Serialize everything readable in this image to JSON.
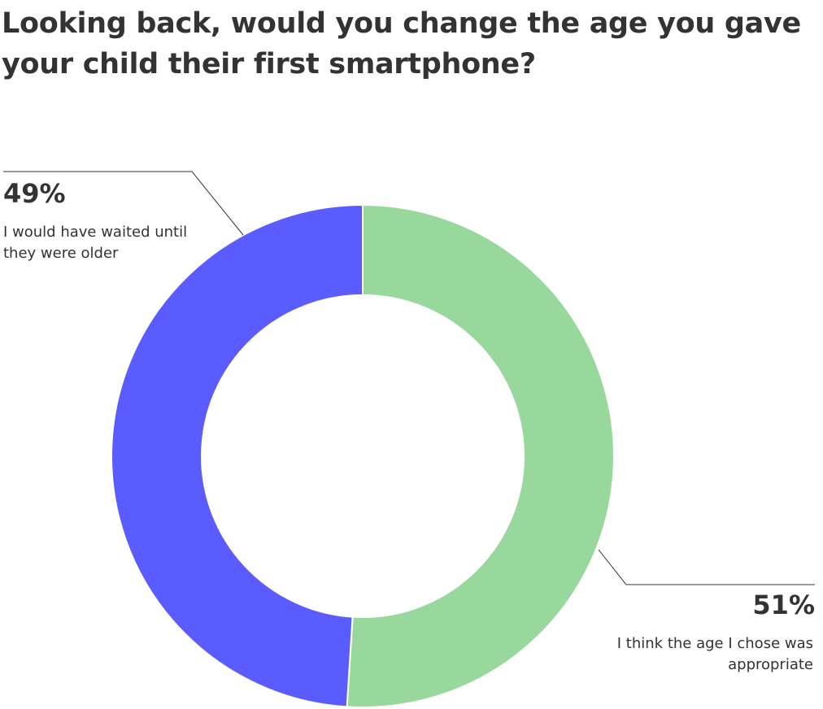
{
  "chart_data": {
    "type": "pie",
    "title": "Looking back, would you change the age you gave your child their first smartphone?",
    "donut": true,
    "slices": [
      {
        "label": "I think the age I chose was appropriate",
        "value": 51,
        "display": "51%",
        "color": "#98D89C"
      },
      {
        "label": "I would have waited until they were older",
        "value": 49,
        "display": "49%",
        "color": "#5B5CFF"
      }
    ],
    "leader_line_color": "#333333",
    "separator_color": "#ffffff"
  }
}
